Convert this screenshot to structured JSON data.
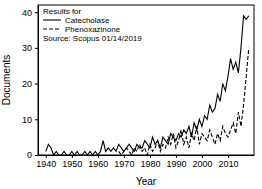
{
  "chart_data": {
    "type": "line",
    "x_label": "Year",
    "y_label": "Documents",
    "annotations": [
      "Results for",
      "Source: Scopus 01/14/2019"
    ],
    "x": [
      1940,
      1941,
      1942,
      1943,
      1944,
      1945,
      1946,
      1947,
      1948,
      1949,
      1950,
      1951,
      1952,
      1953,
      1954,
      1955,
      1956,
      1957,
      1958,
      1959,
      1960,
      1961,
      1962,
      1963,
      1964,
      1965,
      1966,
      1967,
      1968,
      1969,
      1970,
      1971,
      1972,
      1973,
      1974,
      1975,
      1976,
      1977,
      1978,
      1979,
      1980,
      1981,
      1982,
      1983,
      1984,
      1985,
      1986,
      1987,
      1988,
      1989,
      1990,
      1991,
      1992,
      1993,
      1994,
      1995,
      1996,
      1997,
      1998,
      1999,
      2000,
      2001,
      2002,
      2003,
      2004,
      2005,
      2006,
      2007,
      2008,
      2009,
      2010,
      2011,
      2012,
      2013,
      2014,
      2015,
      2016,
      2017,
      2018
    ],
    "series": [
      {
        "name": "Catecholase",
        "color": "#000000",
        "line_style": "solid",
        "values": [
          1,
          3,
          2,
          0,
          1,
          0,
          0,
          1,
          0,
          0,
          1,
          0,
          1,
          0,
          0,
          1,
          0,
          1,
          0,
          1,
          0,
          1,
          4,
          1,
          2,
          1,
          2,
          1,
          3,
          2,
          1,
          2,
          3,
          2,
          1,
          3,
          2,
          2,
          4,
          3,
          2,
          5,
          3,
          4,
          2,
          5,
          4,
          3,
          6,
          5,
          4,
          6,
          5,
          7,
          6,
          8,
          5,
          9,
          7,
          10,
          8,
          11,
          10,
          14,
          12,
          13,
          17,
          15,
          20,
          18,
          22,
          27,
          24,
          26,
          23,
          30,
          39,
          38,
          39
        ]
      },
      {
        "name": "Phenoxazinone",
        "color": "#000000",
        "line_style": "dashed",
        "values": [
          null,
          null,
          null,
          null,
          null,
          null,
          null,
          null,
          null,
          null,
          null,
          null,
          null,
          null,
          null,
          null,
          null,
          null,
          null,
          null,
          null,
          null,
          null,
          null,
          null,
          null,
          null,
          null,
          1,
          0,
          1,
          2,
          1,
          0,
          2,
          1,
          3,
          1,
          2,
          0,
          3,
          1,
          2,
          4,
          1,
          3,
          2,
          5,
          3,
          6,
          2,
          4,
          7,
          3,
          5,
          2,
          6,
          4,
          8,
          3,
          6,
          5,
          4,
          7,
          5,
          3,
          6,
          4,
          8,
          6,
          5,
          7,
          9,
          6,
          12,
          8,
          14,
          22,
          30
        ]
      }
    ],
    "xlim": [
      1937,
      2020
    ],
    "xticks": [
      1940,
      1950,
      1960,
      1970,
      1980,
      1990,
      2000,
      2010
    ],
    "ylim": [
      0,
      42
    ],
    "yticks": [
      0,
      10,
      20,
      30,
      40
    ],
    "legend": "upper left",
    "grid": false
  }
}
